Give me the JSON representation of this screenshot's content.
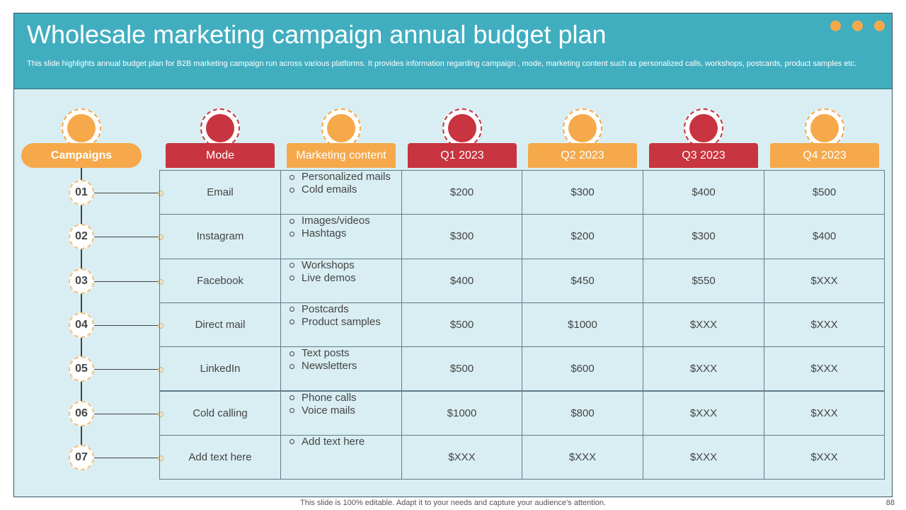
{
  "header": {
    "title": "Wholesale marketing campaign annual budget plan",
    "subtitle": "This slide highlights annual budget plan for B2B marketing campaign run across various platforms. It provides information regarding campaign , mode, marketing content such as personalized calls, workshops, postcards, product samples etc."
  },
  "columns": [
    "Campaigns",
    "Mode",
    "Marketing content",
    "Q1 2023",
    "Q2 2023",
    "Q3 2023",
    "Q4 2023"
  ],
  "rows": [
    {
      "number": "01",
      "mode": "Email",
      "content": [
        "Personalized mails",
        "Cold emails"
      ],
      "budget": [
        "$200",
        "$300",
        "$400",
        "$500"
      ]
    },
    {
      "number": "02",
      "mode": "Instagram",
      "content": [
        "Images/videos",
        "Hashtags"
      ],
      "budget": [
        "$300",
        "$200",
        "$300",
        "$400"
      ]
    },
    {
      "number": "03",
      "mode": "Facebook",
      "content": [
        "Workshops",
        "Live demos"
      ],
      "budget": [
        "$400",
        "$450",
        "$550",
        "$XXX"
      ]
    },
    {
      "number": "04",
      "mode": "Direct mail",
      "content": [
        "Postcards",
        "Product samples"
      ],
      "budget": [
        "$500",
        "$1000",
        "$XXX",
        "$XXX"
      ]
    },
    {
      "number": "05",
      "mode": "LinkedIn",
      "content": [
        "Text posts",
        "Newsletters"
      ],
      "budget": [
        "$500",
        "$600",
        "$XXX",
        "$XXX"
      ]
    },
    {
      "number": "06",
      "mode": "Cold calling",
      "content": [
        "Phone calls",
        "Voice mails"
      ],
      "budget": [
        "$1000",
        "$800",
        "$XXX",
        "$XXX"
      ]
    },
    {
      "number": "07",
      "mode": "Add text here",
      "content": [
        "Add text here"
      ],
      "budget": [
        "$XXX",
        "$XXX",
        "$XXX",
        "$XXX"
      ]
    }
  ],
  "footer": {
    "note": "This slide is 100% editable. Adapt it to your needs and capture your audience's attention.",
    "page": "88"
  }
}
